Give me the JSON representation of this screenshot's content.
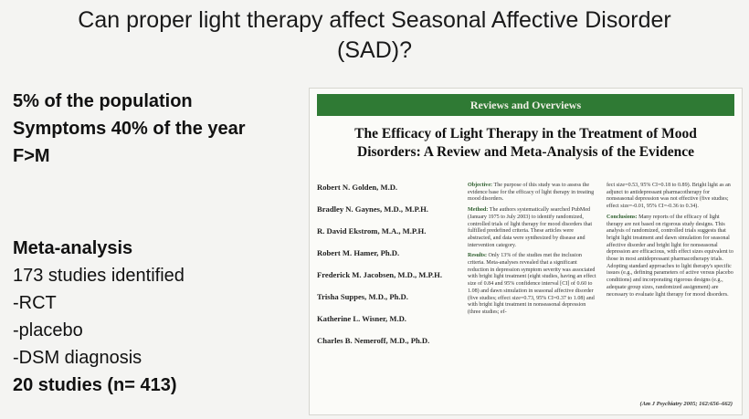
{
  "slide": {
    "title_line1": "Can proper light therapy affect Seasonal Affective Disorder",
    "title_line2": "(SAD)?",
    "facts": [
      "5% of the population",
      "Symptoms 40% of the year",
      "F>M"
    ],
    "meta": {
      "heading": "Meta-analysis",
      "identified": "173 studies identified",
      "criteria": [
        "-RCT",
        "-placebo",
        "-DSM diagnosis"
      ],
      "result": "20 studies (n= 413)"
    }
  },
  "paper": {
    "section": "Reviews and Overviews",
    "title_line1": "The Efficacy of Light Therapy in the Treatment of Mood",
    "title_line2": "Disorders: A Review and Meta-Analysis of the Evidence",
    "authors": [
      "Robert N. Golden, M.D.",
      "Bradley N. Gaynes, M.D., M.P.H.",
      "R. David Ekstrom, M.A., M.P.H.",
      "Robert M. Hamer, Ph.D.",
      "Frederick M. Jacobsen, M.D., M.P.H.",
      "Trisha Suppes, M.D., Ph.D.",
      "Katherine L. Wisner, M.D.",
      "Charles B. Nemeroff, M.D., Ph.D."
    ],
    "objective_label": "Objective:",
    "objective_text": "The purpose of this study was to assess the evidence base for the efficacy of light therapy in treating mood disorders.",
    "method_label": "Method:",
    "method_text": "The authors systematically searched PubMed (January 1975 to July 2003) to identify randomized, controlled trials of light therapy for mood disorders that fulfilled predefined criteria. These articles were abstracted, and data were synthesized by disease and intervention category.",
    "results_label": "Results:",
    "results_text": "Only 13% of the studies met the inclusion criteria. Meta-analyses revealed that a significant reduction in depression symptom severity was associated with bright light treatment (eight studies, having an effect size of 0.84 and 95% confidence interval [CI] of 0.60 to 1.08) and dawn simulation in seasonal affective disorder (five studies; effect size=0.73, 95% CI=0.37 to 1.08) and with bright light treatment in nonseasonal depression (three studies; ef-",
    "col2_text": "fect size=0.53, 95% CI=0.18 to 0.89). Bright light as an adjunct to antidepressant pharmacotherapy for nonseasonal depression was not effective (five studies; effect size=-0.01, 95% CI=-0.36 to 0.34).",
    "conclusions_label": "Conclusions:",
    "conclusions_text": "Many reports of the efficacy of light therapy are not based on rigorous study designs. This analysis of randomized, controlled trials suggests that bright light treatment and dawn simulation for seasonal affective disorder and bright light for nonseasonal depression are efficacious, with effect sizes equivalent to those in most antidepressant pharmacotherapy trials. Adopting standard approaches to light therapy's specific issues (e.g., defining parameters of active versus placebo conditions) and incorporating rigorous designs (e.g., adequate group sizes, randomized assignment) are necessary to evaluate light therapy for mood disorders.",
    "citation": "(Am J Psychiatry 2005; 162:656–662)"
  }
}
